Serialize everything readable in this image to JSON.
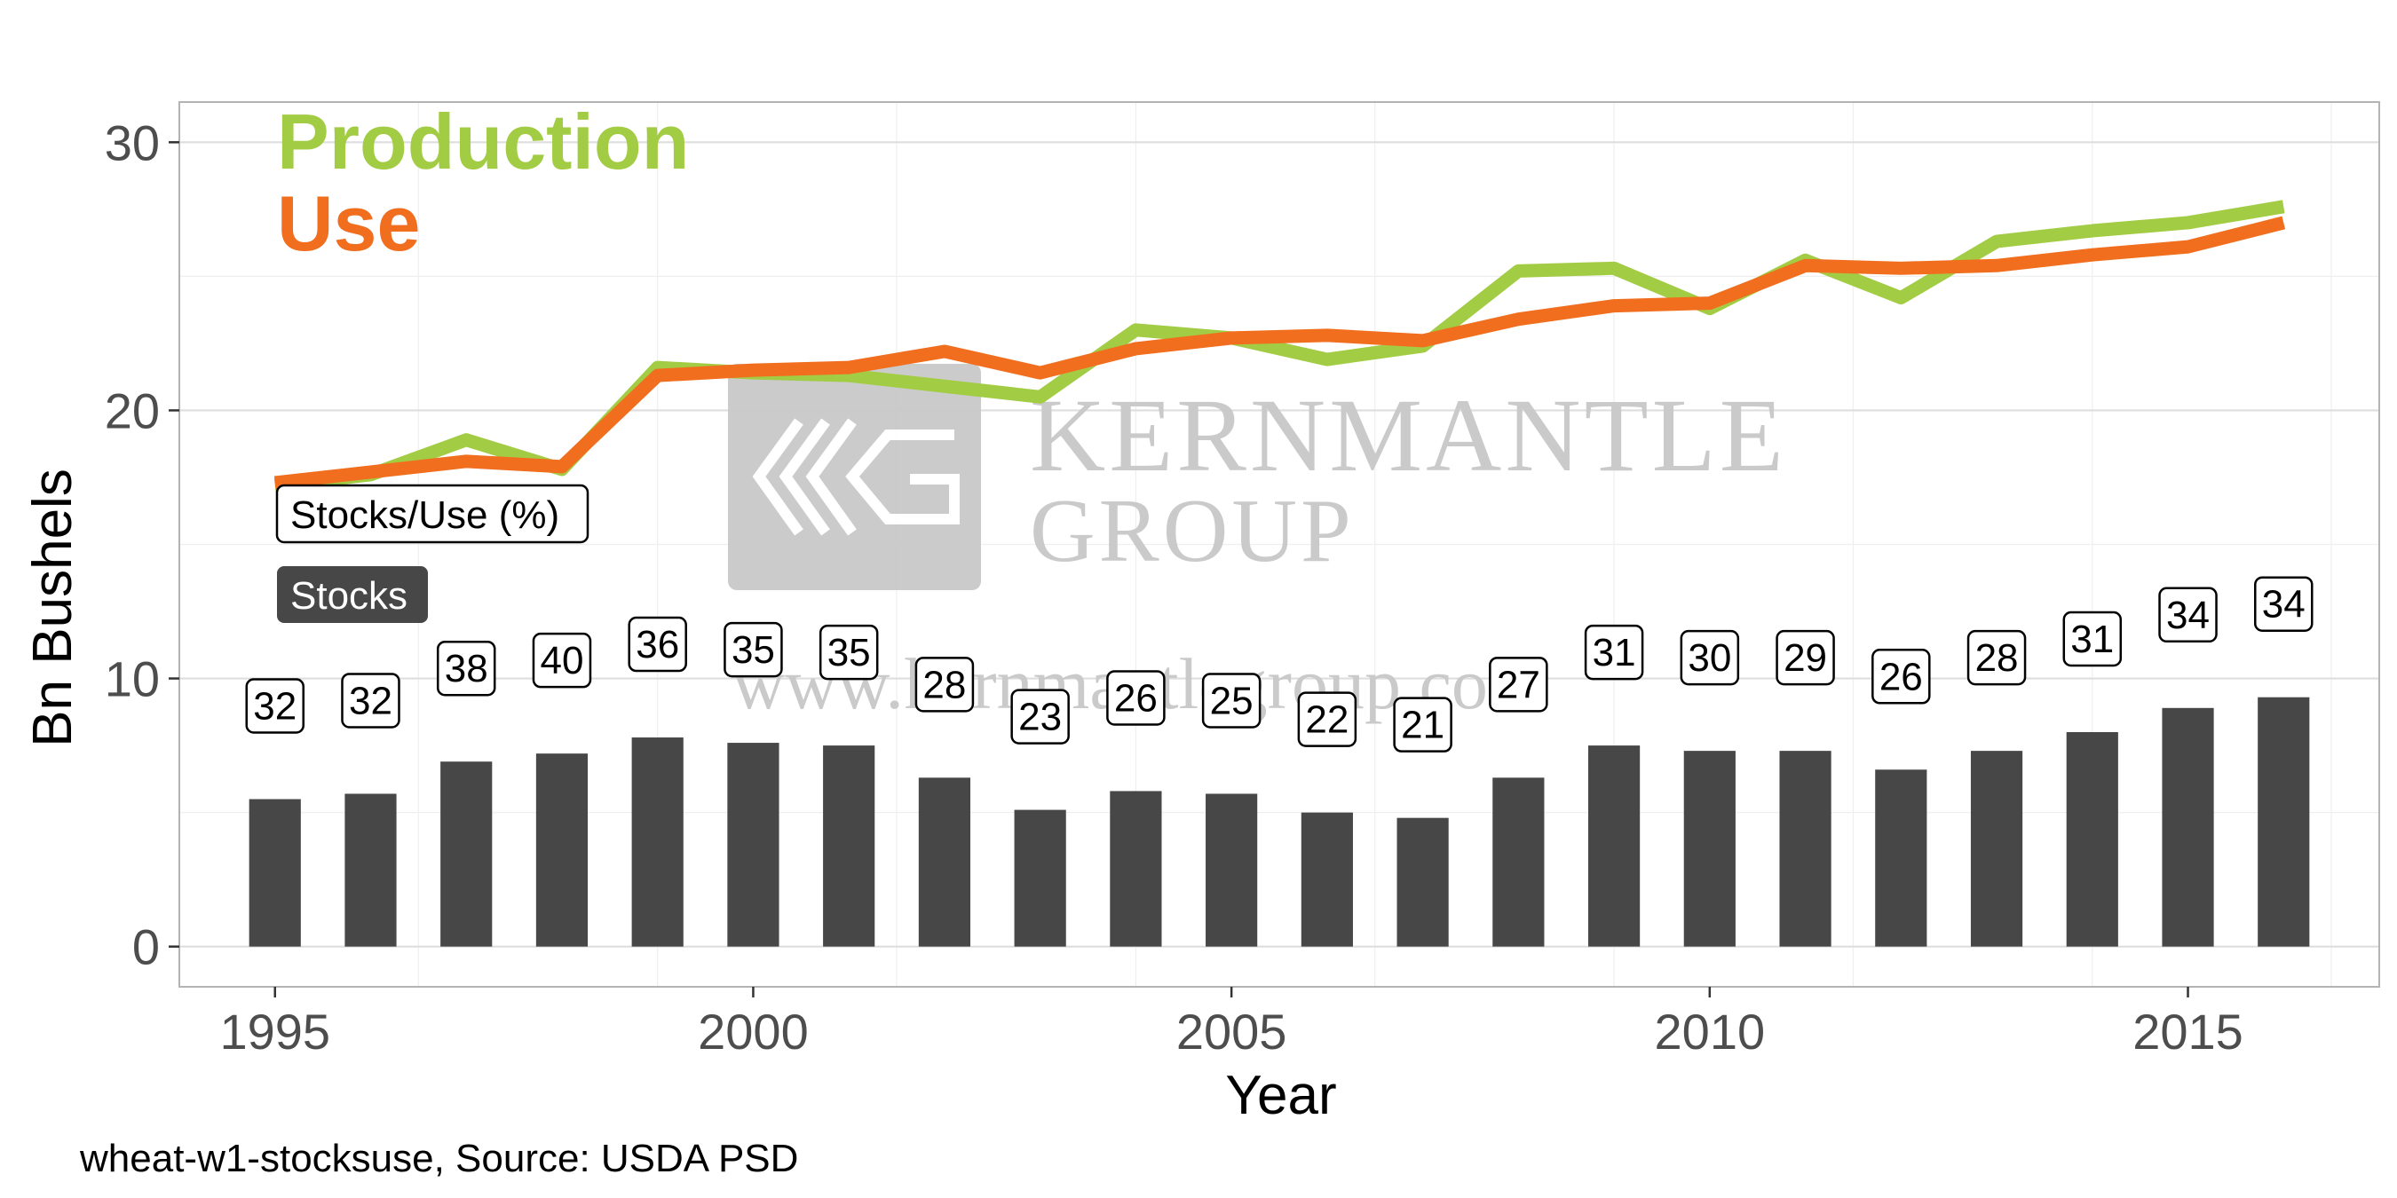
{
  "chart_data": {
    "type": "bar",
    "xlabel": "Year",
    "ylabel": "Bn Bushels",
    "xlim": [
      1994,
      2017
    ],
    "ylim": [
      -1.5,
      31.5
    ],
    "x_ticks": [
      1995,
      2000,
      2005,
      2010,
      2015
    ],
    "y_ticks": [
      0,
      10,
      20,
      30
    ],
    "grid": true,
    "x": [
      1995,
      1996,
      1997,
      1998,
      1999,
      2000,
      2001,
      2002,
      2003,
      2004,
      2005,
      2006,
      2007,
      2008,
      2009,
      2010,
      2011,
      2012,
      2013,
      2014,
      2015,
      2016
    ],
    "series": [
      {
        "name": "Stocks",
        "kind": "bar",
        "color": "#474747",
        "values": [
          5.5,
          5.7,
          6.9,
          7.2,
          7.8,
          7.6,
          7.5,
          6.3,
          5.1,
          5.8,
          5.7,
          5.0,
          4.8,
          6.3,
          7.5,
          7.3,
          7.3,
          6.6,
          7.3,
          8.0,
          8.9,
          9.3
        ]
      },
      {
        "name": "Production",
        "kind": "line",
        "color": "#a3cc45",
        "values": [
          17.2,
          17.6,
          18.9,
          17.8,
          21.6,
          21.4,
          21.3,
          20.9,
          20.5,
          23.0,
          22.7,
          21.9,
          22.4,
          25.2,
          25.3,
          23.8,
          25.6,
          24.2,
          26.3,
          26.7,
          27.0,
          27.6
        ]
      },
      {
        "name": "Use",
        "kind": "line",
        "color": "#f06e1e",
        "values": [
          17.3,
          17.7,
          18.1,
          17.9,
          21.3,
          21.5,
          21.6,
          22.2,
          21.4,
          22.3,
          22.7,
          22.8,
          22.6,
          23.4,
          23.9,
          24.0,
          25.4,
          25.3,
          25.4,
          25.8,
          26.1,
          27.0
        ]
      }
    ],
    "stocks_use_pct": [
      32,
      32,
      38,
      40,
      36,
      35,
      35,
      28,
      23,
      26,
      25,
      22,
      21,
      27,
      31,
      30,
      29,
      26,
      28,
      31,
      34,
      34
    ],
    "legend": {
      "placement": "top-left",
      "production_label": "Production",
      "use_label": "Use",
      "stocks_use_label": "Stocks/Use (%)",
      "stocks_label": "Stocks"
    },
    "caption": "wheat-w1-stocksuse, Source: USDA PSD",
    "watermark": {
      "line1": "KERNMANTLE",
      "line2": "GROUP",
      "url": "www.kernmantlegroup.com"
    }
  }
}
